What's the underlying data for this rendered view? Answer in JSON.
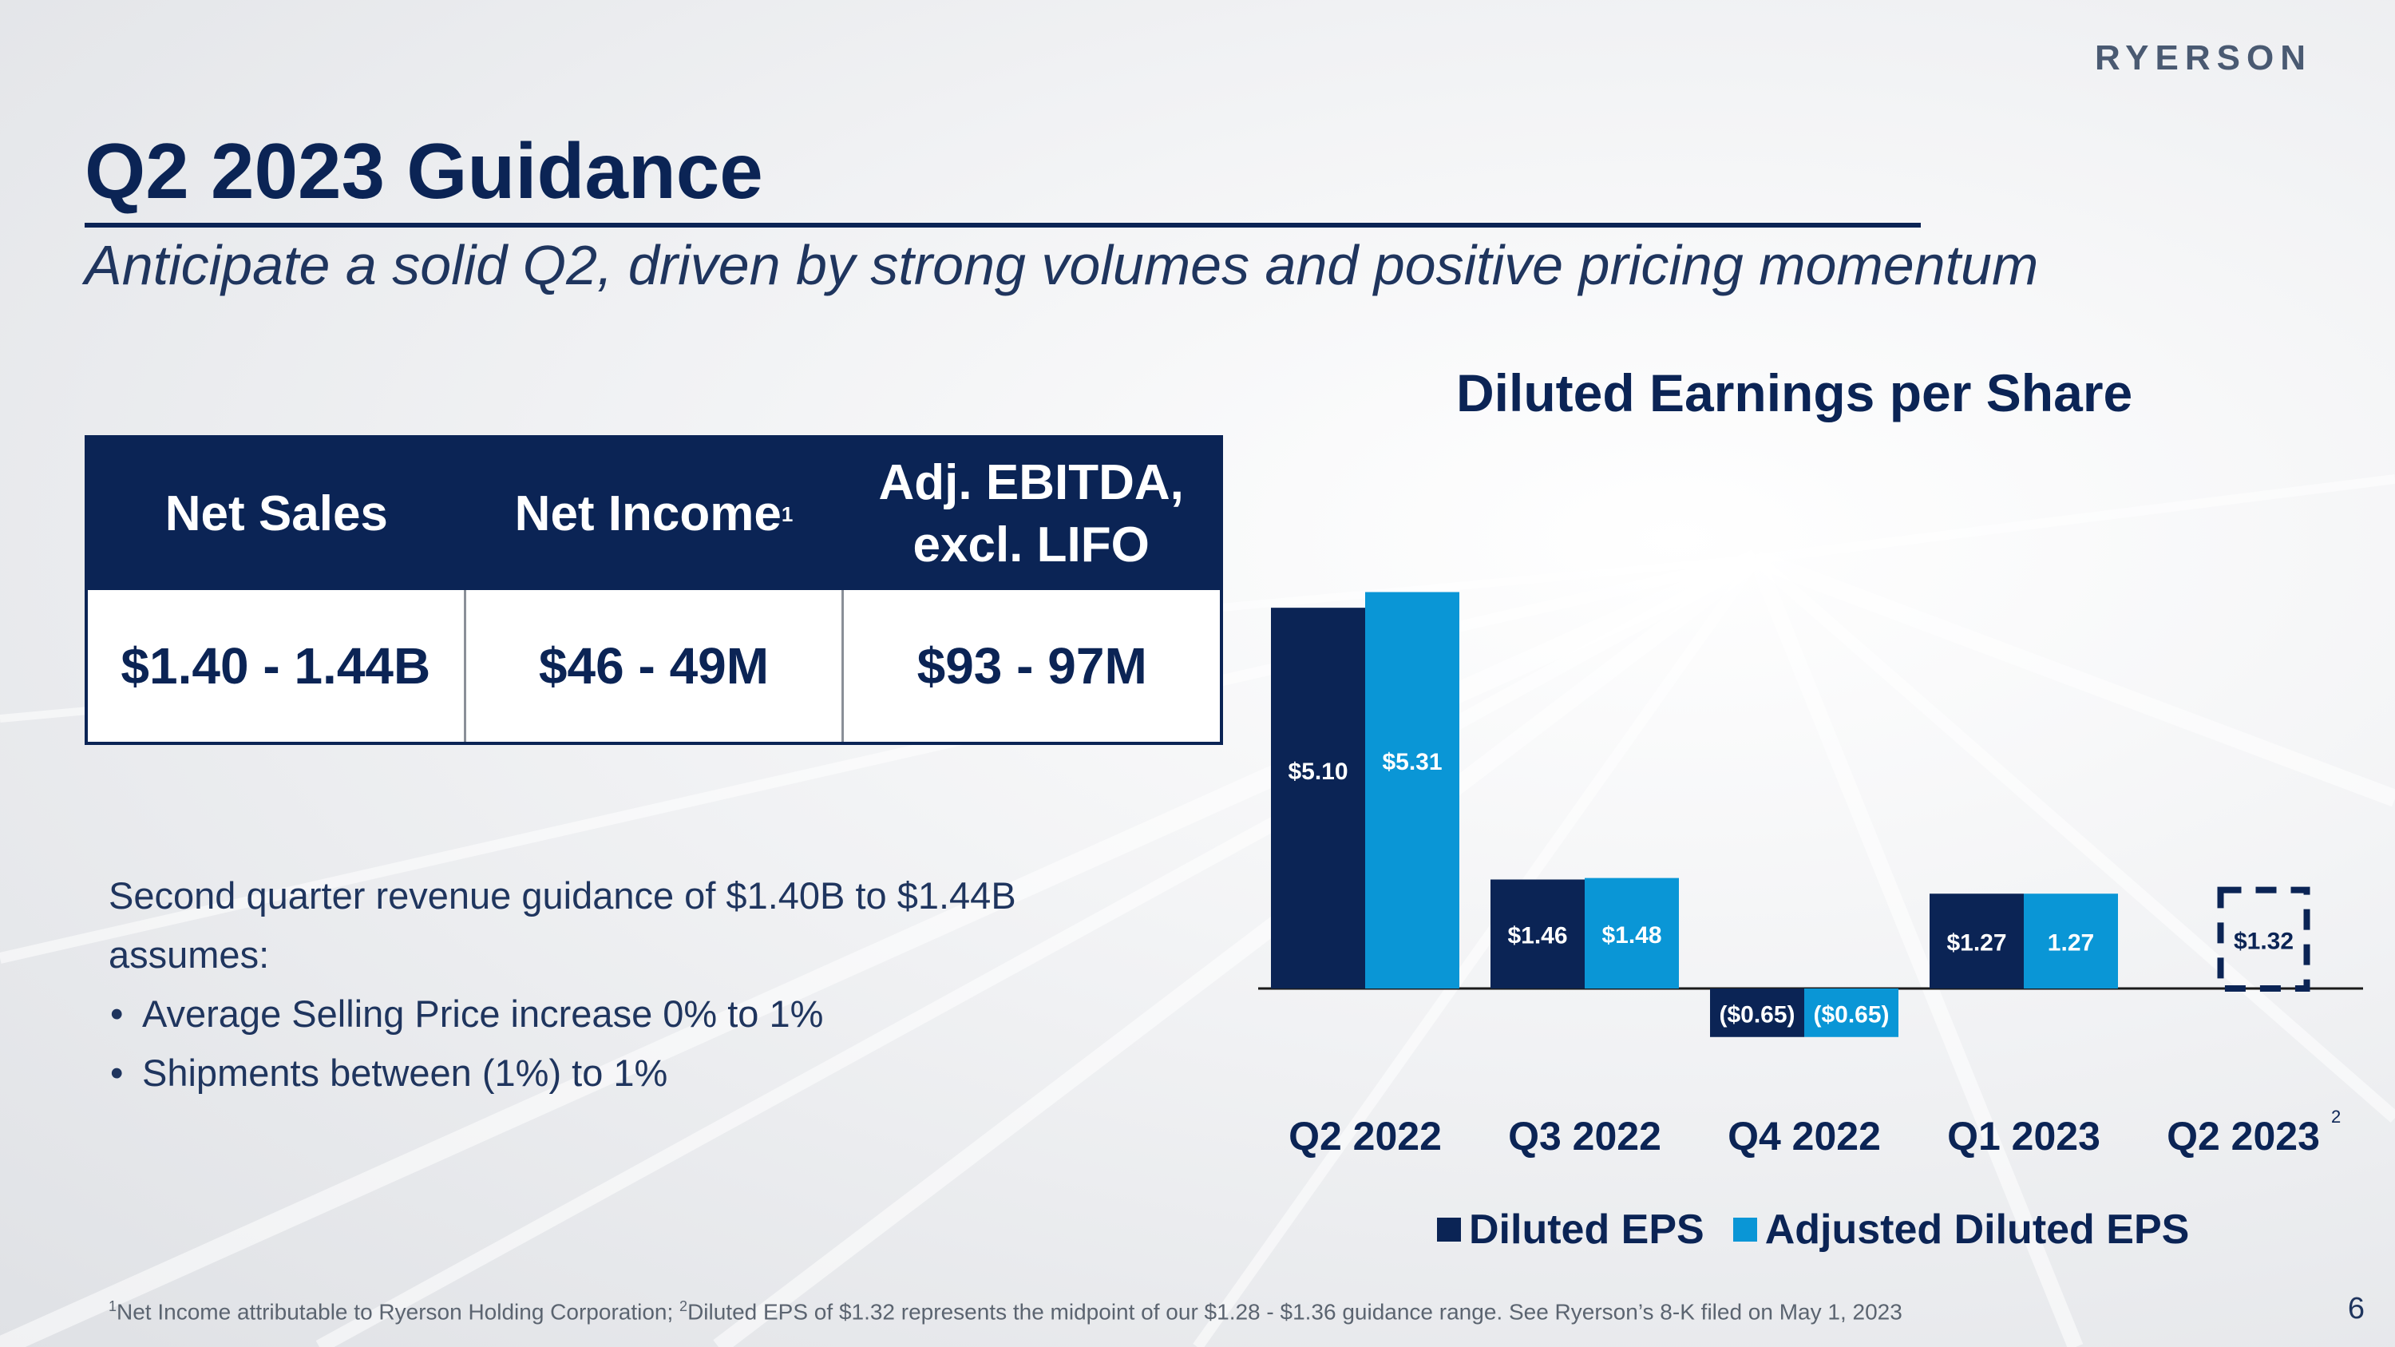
{
  "brand": {
    "logo_text": "RYERSON"
  },
  "title": "Q2 2023 Guidance",
  "subtitle": "Anticipate a solid Q2, driven by strong volumes and positive pricing momentum",
  "guidance_table": {
    "headers": [
      {
        "label": "Net Sales",
        "sup": ""
      },
      {
        "label": "Net Income",
        "sup": "1"
      },
      {
        "label": "Adj. EBITDA,\nexcl. LIFO",
        "sup": ""
      }
    ],
    "values": [
      "$1.40 - 1.44B",
      "$46 - 49M",
      "$93 - 97M"
    ]
  },
  "notes": {
    "intro": "Second quarter revenue guidance of $1.40B to $1.44B assumes:",
    "bullets": [
      "Average Selling Price increase 0% to 1%",
      "Shipments between (1%) to 1%"
    ]
  },
  "chart_data": {
    "type": "bar",
    "title": "Diluted Earnings per Share",
    "categories": [
      "Q2 2022",
      "Q3 2022",
      "Q4 2022",
      "Q1 2023",
      "Q2 2023"
    ],
    "category_superscripts": [
      "",
      "",
      "",
      "",
      "2"
    ],
    "series": [
      {
        "name": "Diluted EPS",
        "color": "#0b2455",
        "values": [
          5.1,
          1.46,
          -0.65,
          1.27,
          1.32
        ],
        "labels": [
          "$5.10",
          "$1.46",
          "($0.65)",
          "$1.27",
          "$1.32"
        ],
        "styles": [
          "solid",
          "solid",
          "solid",
          "solid",
          "dashed"
        ]
      },
      {
        "name": "Adjusted Diluted EPS",
        "color": "#0a96d6",
        "values": [
          5.31,
          1.48,
          -0.65,
          1.27,
          null
        ],
        "labels": [
          "$5.31",
          "$1.48",
          "($0.65)",
          "1.27",
          ""
        ],
        "styles": [
          "solid",
          "solid",
          "solid",
          "solid",
          "solid"
        ]
      }
    ],
    "ylim": [
      -0.85,
      5.5
    ],
    "grid": false,
    "legend": "bottom"
  },
  "footnote": {
    "sup1": "1",
    "text1": "Net Income attributable to Ryerson Holding Corporation; ",
    "sup2": "2",
    "text2": "Diluted EPS of $1.32 represents the midpoint of our $1.28 - $1.36 guidance range. See Ryerson’s 8-K filed on May 1, 2023"
  },
  "page_number": "6"
}
